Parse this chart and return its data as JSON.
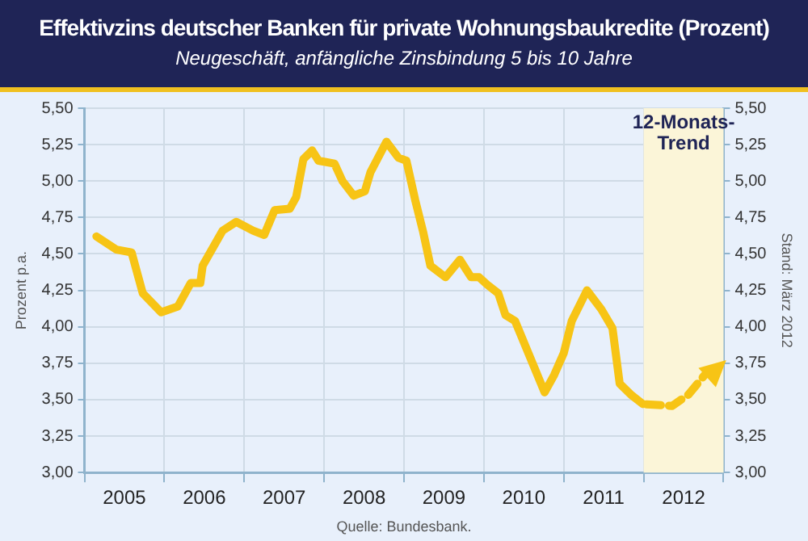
{
  "chart_data": {
    "type": "line",
    "title": "Effektivzins deutscher Banken für private Wohnungsbaukredite (Prozent)",
    "subtitle": "Neugeschäft, anfängliche Zinsbindung 5 bis 10 Jahre",
    "ylabel": "Prozent p.a.",
    "y2label": "Stand: März 2012",
    "annotations": [
      "Quelle: Bundesbank."
    ],
    "xlim": [
      2005,
      2013
    ],
    "xticks": [
      {
        "value": 2005,
        "label": null
      },
      {
        "value": 2005.5,
        "label": "2005"
      },
      {
        "value": 2006,
        "label": null
      },
      {
        "value": 2006.5,
        "label": "2006"
      },
      {
        "value": 2007,
        "label": null
      },
      {
        "value": 2007.5,
        "label": "2007"
      },
      {
        "value": 2008,
        "label": null
      },
      {
        "value": 2008.5,
        "label": "2008"
      },
      {
        "value": 2009,
        "label": null
      },
      {
        "value": 2009.5,
        "label": "2009"
      },
      {
        "value": 2010,
        "label": null
      },
      {
        "value": 2010.5,
        "label": "2010"
      },
      {
        "value": 2011,
        "label": null
      },
      {
        "value": 2011.5,
        "label": "2011"
      },
      {
        "value": 2012,
        "label": null
      },
      {
        "value": 2012.5,
        "label": "2012"
      },
      {
        "value": 2013,
        "label": null
      }
    ],
    "ylim": [
      3,
      5.5
    ],
    "yticks": [
      {
        "value": 3,
        "label": "3,00"
      },
      {
        "value": 3.25,
        "label": "3,25"
      },
      {
        "value": 3.5,
        "label": "3,50"
      },
      {
        "value": 3.75,
        "label": "3,75"
      },
      {
        "value": 4,
        "label": "4,00"
      },
      {
        "value": 4.25,
        "label": "4,25"
      },
      {
        "value": 4.5,
        "label": "4,50"
      },
      {
        "value": 4.75,
        "label": "4,75"
      },
      {
        "value": 5,
        "label": "5,00"
      },
      {
        "value": 5.25,
        "label": "5,25"
      },
      {
        "value": 5.5,
        "label": "5,50"
      }
    ],
    "y2lim": [
      3,
      5.5
    ],
    "y2ticks": [
      {
        "value": 3,
        "label": "3,00"
      },
      {
        "value": 3.25,
        "label": "3,25"
      },
      {
        "value": 3.5,
        "label": "3,50"
      },
      {
        "value": 3.75,
        "label": "3,75"
      },
      {
        "value": 4,
        "label": "4,00"
      },
      {
        "value": 4.25,
        "label": "4,25"
      },
      {
        "value": 4.5,
        "label": "4,50"
      },
      {
        "value": 4.75,
        "label": "4,75"
      },
      {
        "value": 5,
        "label": "5,00"
      },
      {
        "value": 5.25,
        "label": "5,25"
      },
      {
        "value": 5.5,
        "label": "5,50"
      }
    ],
    "grid": true,
    "legend": false,
    "bands": [
      {
        "axis": "x",
        "from": 2012,
        "to": 2013,
        "label": "12-Monats-Trend",
        "color": "#fbf5d8"
      }
    ],
    "series": [
      {
        "color": "#f7c415",
        "line_style": "solid",
        "x": [
          2005.15,
          2005.4,
          2005.59,
          2005.73,
          2005.96,
          2006.17,
          2006.33,
          2006.45,
          2006.48,
          2006.73,
          2006.9,
          2007.11,
          2007.25,
          2007.38,
          2007.57,
          2007.65,
          2007.74,
          2007.85,
          2007.93,
          2008.13,
          2008.23,
          2008.37,
          2008.51,
          2008.58,
          2008.78,
          2008.93,
          2009.03,
          2009.14,
          2009.24,
          2009.33,
          2009.52,
          2009.7,
          2009.84,
          2009.94,
          2010.04,
          2010.18,
          2010.27,
          2010.39,
          2010.76,
          2010.88,
          2011.0,
          2011.1,
          2011.29,
          2011.47,
          2011.61,
          2011.7,
          2011.85,
          2011.99
        ],
        "values": [
          4.62,
          4.53,
          4.51,
          4.23,
          4.1,
          4.14,
          4.3,
          4.3,
          4.42,
          4.66,
          4.72,
          4.66,
          4.63,
          4.8,
          4.81,
          4.89,
          5.15,
          5.21,
          5.14,
          5.12,
          5.0,
          4.9,
          4.93,
          5.06,
          5.27,
          5.16,
          5.14,
          4.87,
          4.65,
          4.42,
          4.34,
          4.46,
          4.34,
          4.34,
          4.29,
          4.23,
          4.08,
          4.04,
          3.55,
          3.67,
          3.82,
          4.04,
          4.25,
          4.12,
          3.99,
          3.61,
          3.53,
          3.47
        ]
      }
    ]
  }
}
